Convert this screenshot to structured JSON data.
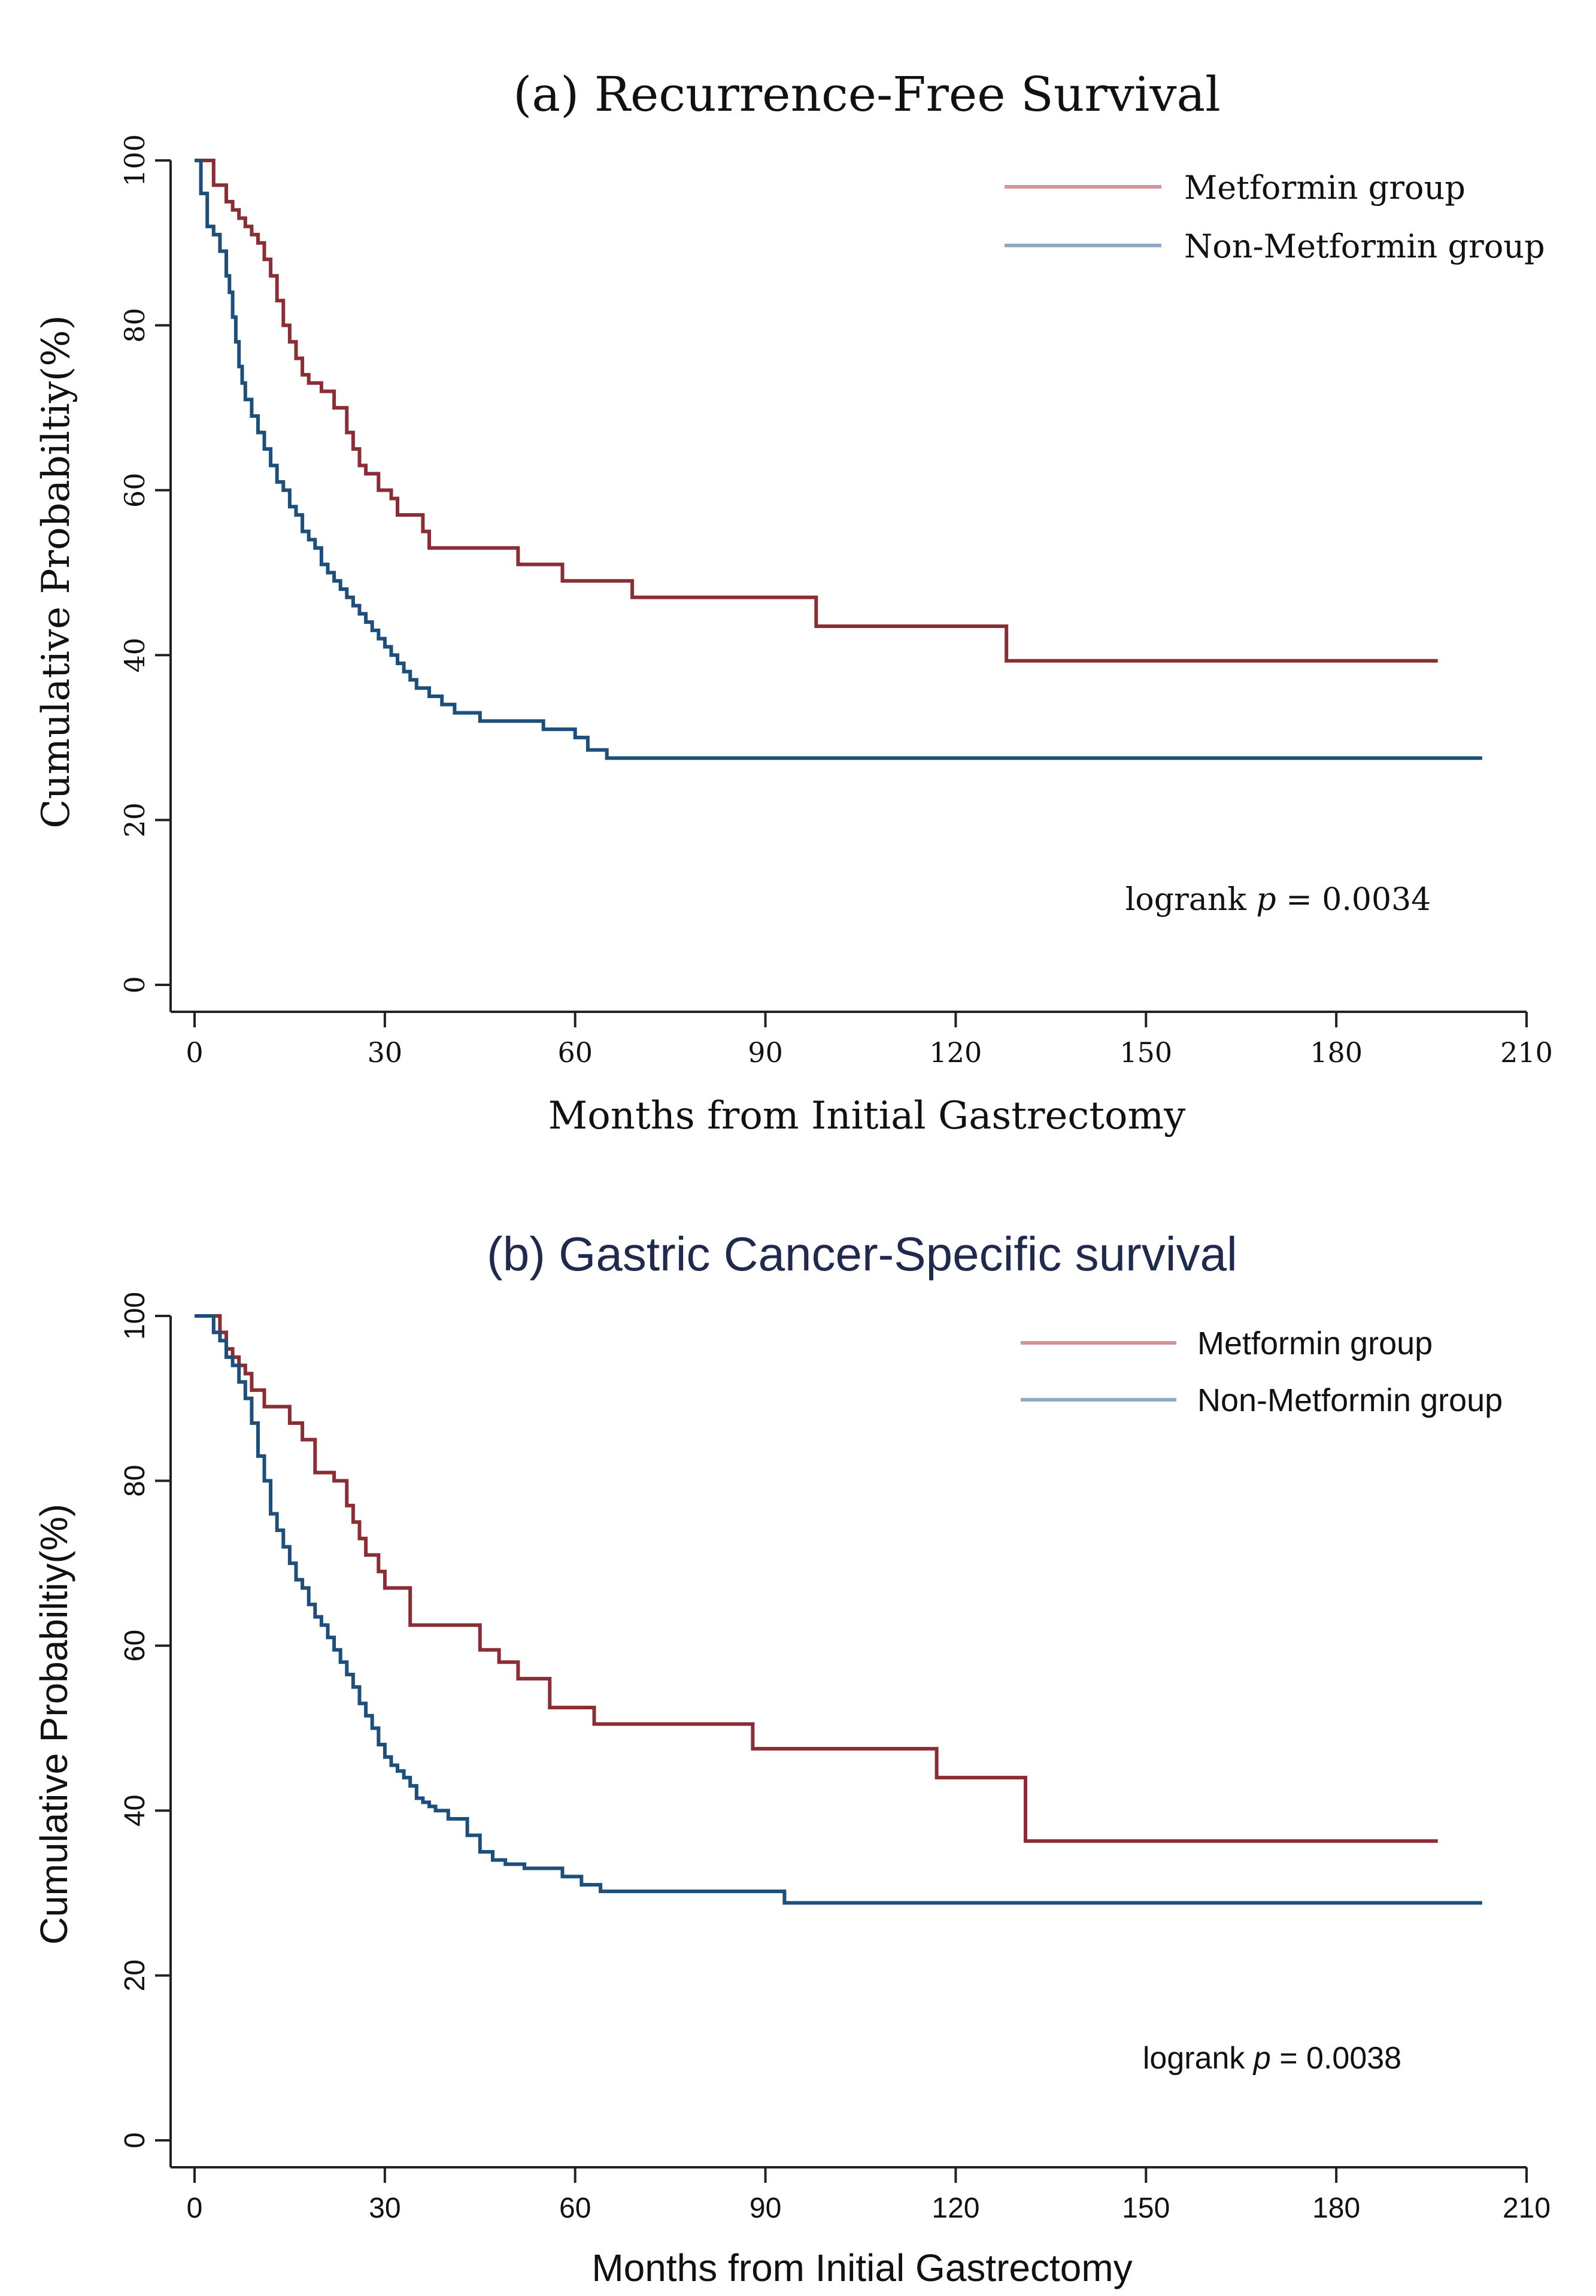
{
  "chart_data": [
    {
      "type": "line",
      "title": "(a) Recurrence-Free Survival",
      "xlabel": "Months from Initial Gastrectomy",
      "ylabel": "Cumulative Probabiltiy(%)",
      "xlim": [
        0,
        210
      ],
      "ylim": [
        0,
        100
      ],
      "xticks": [
        0,
        30,
        60,
        90,
        120,
        150,
        180,
        210
      ],
      "yticks": [
        0,
        20,
        40,
        60,
        80,
        100
      ],
      "grid": false,
      "legend_position": "top-right",
      "annotation": {
        "prefix": "logrank ",
        "p": "p",
        "suffix": " = 0.0034"
      },
      "series": [
        {
          "name": "Metformin group",
          "color": "#8b2d34",
          "legend_color": "#d4949a",
          "step": true,
          "x": [
            0,
            3,
            5,
            6,
            7,
            8,
            9,
            10,
            11,
            12,
            13,
            14,
            15,
            16,
            17,
            18,
            20,
            22,
            24,
            25,
            26,
            27,
            29,
            31,
            32,
            36,
            37,
            44,
            51,
            58,
            69,
            98,
            128,
            196
          ],
          "y": [
            100,
            97,
            95,
            94,
            93,
            92,
            91,
            90,
            88,
            86,
            83,
            80,
            78,
            76,
            74,
            73,
            72,
            70,
            67,
            65,
            63,
            62,
            60,
            59,
            57,
            55,
            53,
            53,
            51,
            49,
            47,
            43.5,
            39.3,
            39.3
          ]
        },
        {
          "name": "Non-Metformin group",
          "color": "#1d4f7c",
          "legend_color": "#8eabc6",
          "step": true,
          "x": [
            0,
            1,
            2,
            3,
            4,
            5,
            5.5,
            6,
            6.5,
            7,
            7.5,
            8,
            9,
            10,
            11,
            12,
            13,
            14,
            15,
            16,
            17,
            18,
            19,
            20,
            21,
            22,
            23,
            24,
            25,
            26,
            27,
            28,
            29,
            30,
            31,
            32,
            33,
            34,
            35,
            37,
            39,
            41,
            43,
            45,
            50,
            55,
            57,
            60,
            62,
            65,
            203
          ],
          "y": [
            100,
            96,
            92,
            91,
            89,
            86,
            84,
            81,
            78,
            75,
            73,
            71,
            69,
            67,
            65,
            63,
            61,
            60,
            58,
            57,
            55,
            54,
            53,
            51,
            50,
            49,
            48,
            47,
            46,
            45,
            44,
            43,
            42,
            41,
            40,
            39,
            38,
            37,
            36,
            35,
            34,
            33,
            33,
            32,
            32,
            31,
            31,
            30,
            28.5,
            27.5,
            27.5
          ]
        }
      ]
    },
    {
      "type": "line",
      "title": "(b) Gastric Cancer-Specific survival",
      "title_color": "#1f2a4e",
      "xlabel": "Months from Initial Gastrectomy",
      "ylabel": "Cumulative Probabiltiy(%)",
      "xlim": [
        0,
        210
      ],
      "ylim": [
        0,
        100
      ],
      "xticks": [
        0,
        30,
        60,
        90,
        120,
        150,
        180,
        210
      ],
      "yticks": [
        0,
        20,
        40,
        60,
        80,
        100
      ],
      "grid": false,
      "legend_position": "top-right",
      "annotation": {
        "prefix": "logrank ",
        "p": "p",
        "suffix": " = 0.0038"
      },
      "series": [
        {
          "name": "Metformin group",
          "color": "#8b2d34",
          "legend_color": "#d4949a",
          "step": true,
          "x": [
            0,
            4,
            5,
            6,
            7,
            8,
            9,
            11,
            15,
            17,
            19,
            22,
            24,
            25,
            26,
            27,
            29,
            30,
            34,
            45,
            48,
            51,
            56,
            63,
            88,
            117,
            131,
            196
          ],
          "y": [
            100,
            98,
            96,
            95,
            94,
            93,
            91,
            89,
            87,
            85,
            81,
            80,
            77,
            75,
            73,
            71,
            69,
            67,
            62.5,
            59.5,
            58,
            56,
            52.5,
            50.5,
            47.5,
            44,
            36.3,
            36.3
          ]
        },
        {
          "name": "Non-Metformin group",
          "color": "#1d4f7c",
          "legend_color": "#8eabc6",
          "step": true,
          "x": [
            0,
            3,
            4,
            5,
            6,
            7,
            8,
            9,
            10,
            11,
            12,
            13,
            14,
            15,
            16,
            17,
            18,
            19,
            20,
            21,
            22,
            23,
            24,
            25,
            26,
            27,
            28,
            29,
            30,
            31,
            32,
            33,
            34,
            35,
            36,
            37,
            38,
            40,
            43,
            45,
            47,
            49,
            52,
            58,
            61,
            64,
            93,
            203
          ],
          "y": [
            100,
            98,
            97,
            95,
            94,
            92,
            90,
            87,
            83,
            80,
            76,
            74,
            72,
            70,
            68,
            67,
            65,
            63.5,
            62.5,
            61,
            59.5,
            58,
            56.5,
            55,
            53,
            51.5,
            50,
            48,
            46.5,
            45.5,
            44.8,
            44,
            43,
            41.5,
            41,
            40.5,
            40,
            39,
            37,
            35,
            34,
            33.5,
            33,
            32,
            31,
            30.2,
            28.8,
            28.8
          ]
        }
      ]
    }
  ]
}
